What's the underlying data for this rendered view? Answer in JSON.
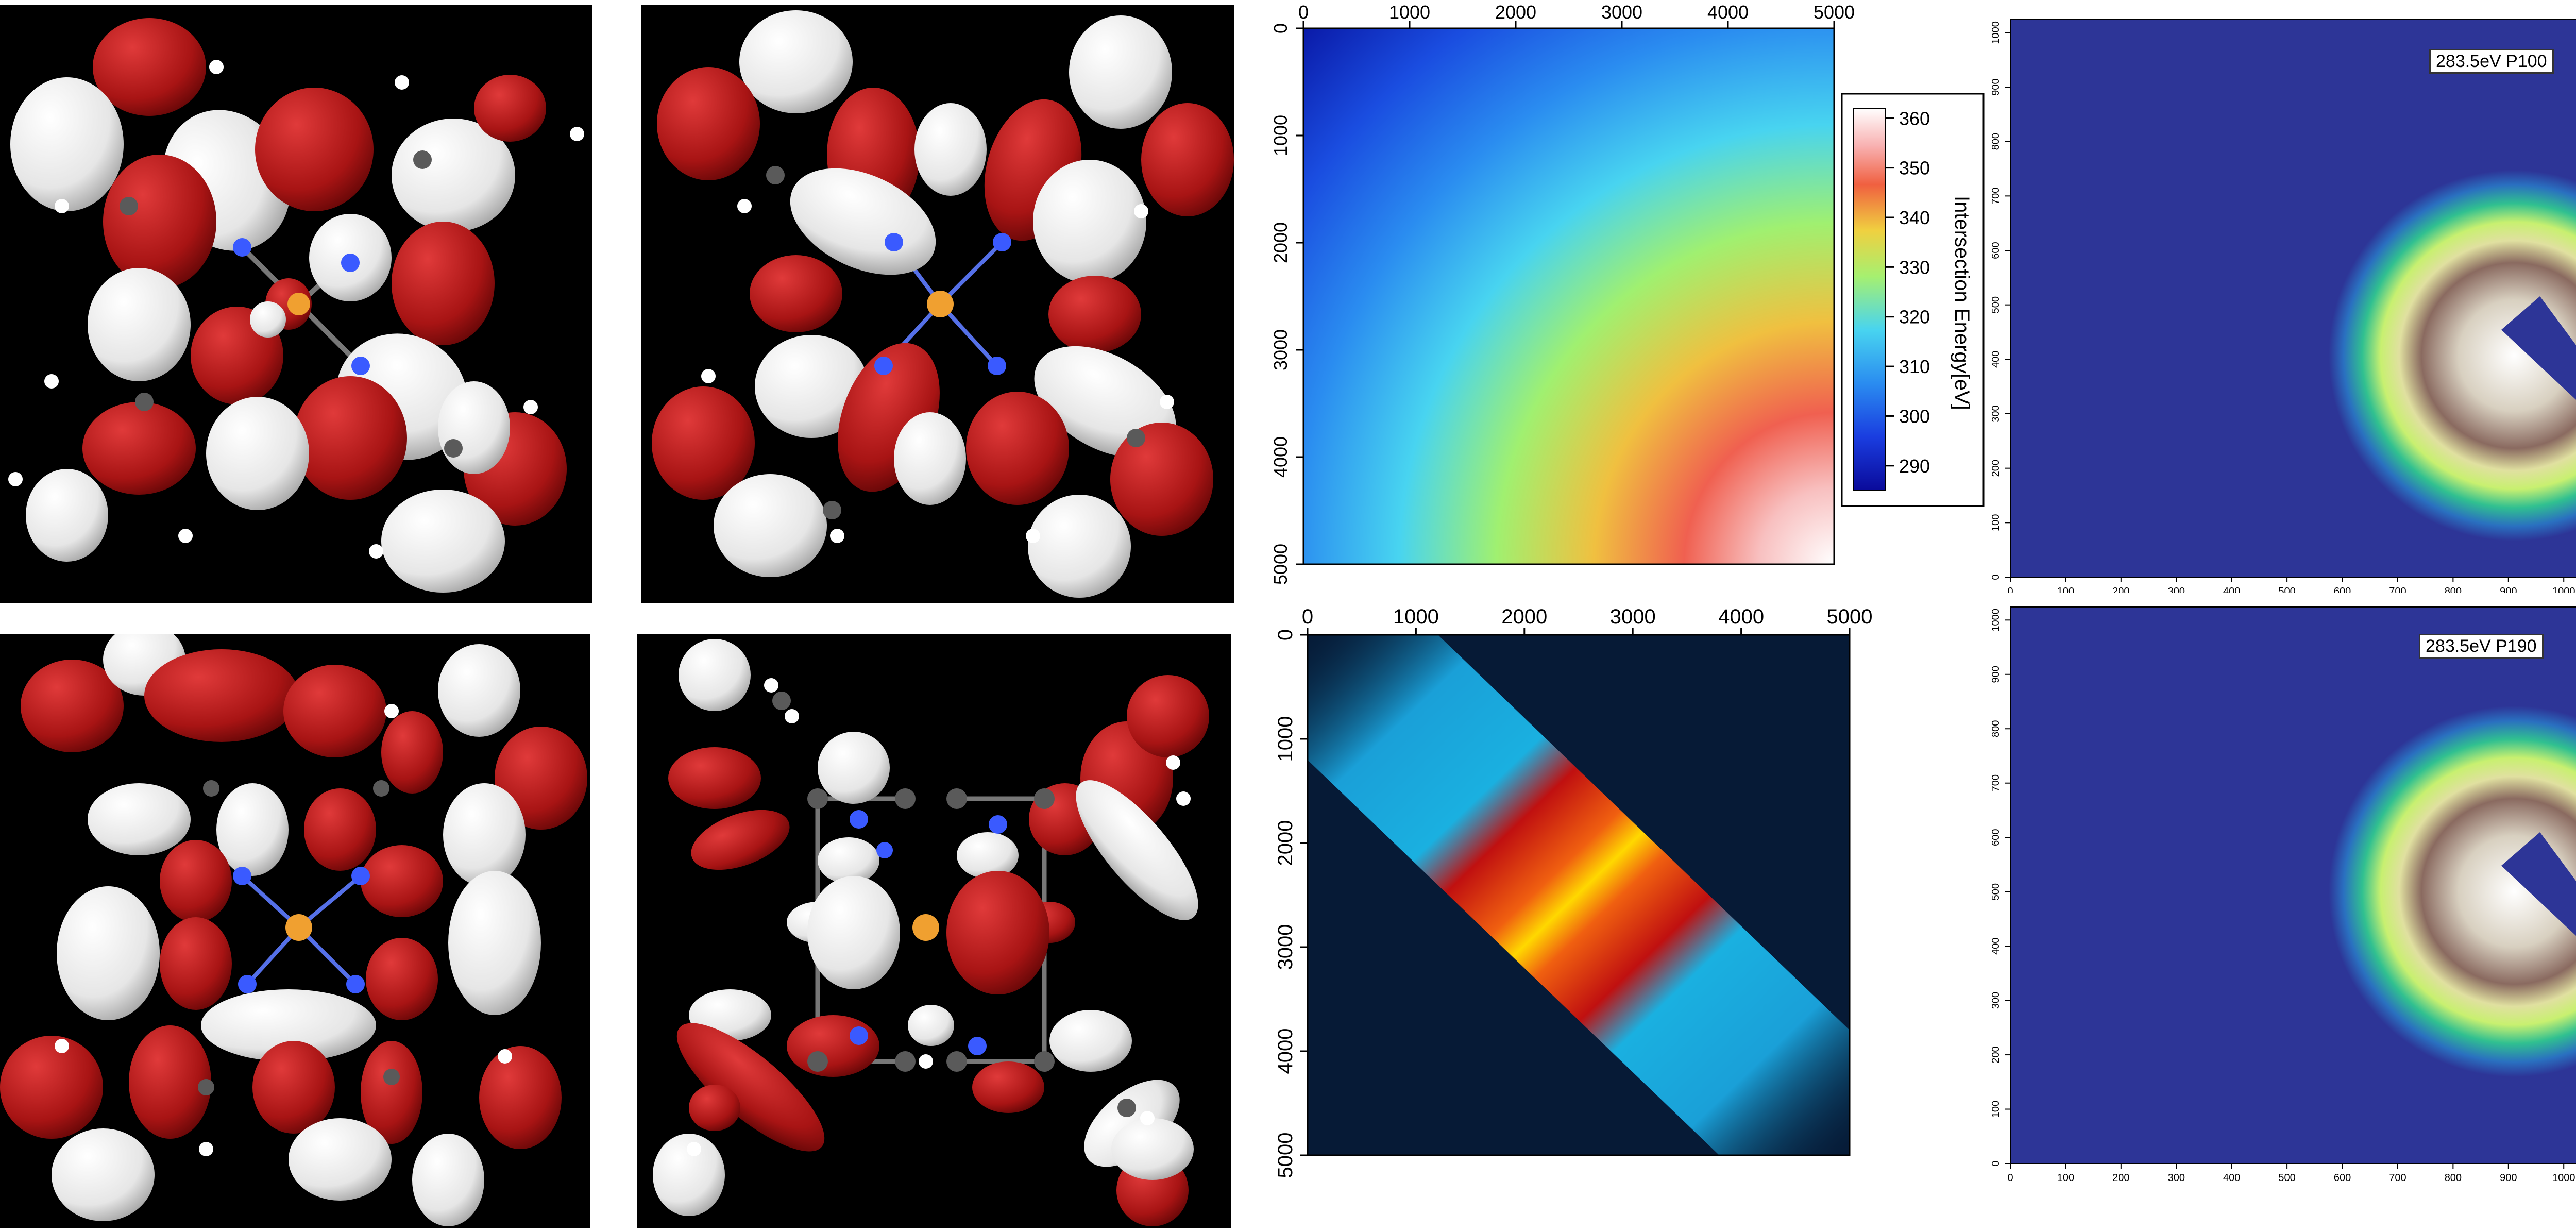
{
  "figure": {
    "orbital_panels": [
      {
        "name": "orbital-panel-top-left",
        "description_icon": "molecular-orbital-icon"
      },
      {
        "name": "orbital-panel-top-right",
        "description_icon": "molecular-orbital-icon"
      },
      {
        "name": "orbital-panel-bottom-left",
        "description_icon": "molecular-orbital-icon"
      },
      {
        "name": "orbital-panel-bottom-right",
        "description_icon": "molecular-orbital-icon"
      }
    ],
    "colors": {
      "background": "#000000",
      "lobe_red": "#b01818",
      "lobe_white": "#f4f4f4",
      "carbon": "#5a5a5a",
      "hydrogen": "#ffffff",
      "nitrogen": "#3a5aff",
      "metal": "#f0a030",
      "detector_bg": "#2d3597"
    }
  },
  "chart_data": [
    {
      "type": "heatmap",
      "name": "intersection-energy-map",
      "x_ticks": [
        "0",
        "1000",
        "2000",
        "3000",
        "4000",
        "5000"
      ],
      "y_ticks": [
        "0",
        "1000",
        "2000",
        "3000",
        "4000",
        "5000"
      ],
      "xlim": [
        0,
        5000
      ],
      "ylim": [
        0,
        5000
      ],
      "colorbar": {
        "label": "Intersection Energy[eV]",
        "ticks": [
          "290",
          "300",
          "310",
          "320",
          "330",
          "340",
          "350",
          "360"
        ],
        "range": [
          285,
          362
        ]
      },
      "colormap": [
        "#0a0a9a",
        "#1a3de0",
        "#2a8cf0",
        "#48d4f0",
        "#a6f070",
        "#f0d040",
        "#f06040",
        "#f8b0b0",
        "#ffffff"
      ]
    },
    {
      "type": "heatmap",
      "name": "diagonal-correlation-map",
      "x_ticks": [
        "0",
        "1000",
        "2000",
        "3000",
        "4000",
        "5000"
      ],
      "y_ticks": [
        "0",
        "1000",
        "2000",
        "3000",
        "4000",
        "5000"
      ],
      "xlim": [
        0,
        5000
      ],
      "ylim": [
        0,
        5000
      ],
      "colormap": [
        "#061a36",
        "#1aa0d8",
        "#d01010",
        "#f06010",
        "#ffd000"
      ]
    },
    {
      "type": "heatmap",
      "name": "detector-image-p100",
      "label": "283.5eV P100",
      "x_ticks": [
        "0",
        "100",
        "200",
        "300",
        "400",
        "500",
        "600",
        "700",
        "800",
        "900",
        "1000"
      ],
      "y_ticks": [
        "0",
        "100",
        "200",
        "300",
        "400",
        "500",
        "600",
        "700",
        "800",
        "900",
        "1000"
      ],
      "xlim": [
        0,
        1024
      ],
      "ylim": [
        0,
        1024
      ]
    },
    {
      "type": "heatmap",
      "name": "detector-image-p190",
      "label": "283.5eV P190",
      "x_ticks": [
        "0",
        "100",
        "200",
        "300",
        "400",
        "500",
        "600",
        "700",
        "800",
        "900",
        "1000"
      ],
      "y_ticks": [
        "0",
        "100",
        "200",
        "300",
        "400",
        "500",
        "600",
        "700",
        "800",
        "900",
        "1000"
      ],
      "xlim": [
        0,
        1024
      ],
      "ylim": [
        0,
        1024
      ]
    }
  ]
}
